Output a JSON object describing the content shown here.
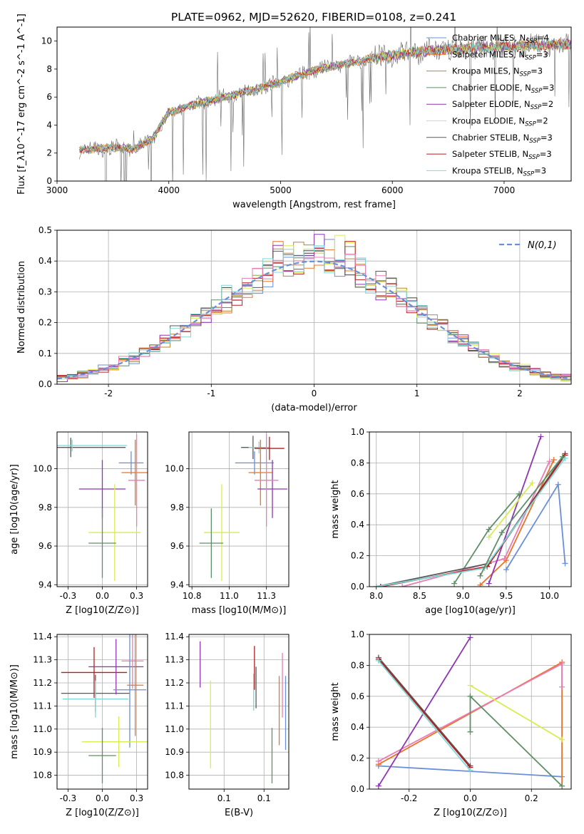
{
  "title": "PLATE=0962, MJD=52620, FIBERID=0108, z=0.241",
  "colors": {
    "c0": "#6a8fd8",
    "c1": "#e8742a",
    "c2": "#b8862e",
    "c3": "#5f8f69",
    "c4": "#8e35b3",
    "c5": "#d8ec4f",
    "c6": "#5a5a5a",
    "c7": "#b61e1e",
    "c8": "#7fd8d8",
    "pink": "#ea7cb3"
  },
  "chart_data": [
    {
      "id": "spectrum",
      "type": "line",
      "xlabel": "wavelength [Angstrom, rest frame]",
      "ylabel": "Flux [f_λ10^-17 erg cm^-2 s^-1 A^-1]",
      "xlim": [
        3000,
        7600
      ],
      "ylim": [
        0,
        11
      ],
      "xticks": [
        3000,
        4000,
        5000,
        6000,
        7000
      ],
      "yticks": [
        0,
        2,
        4,
        6,
        8,
        10
      ],
      "x_range": [
        3200,
        7600
      ],
      "continuum": [
        [
          3200,
          2.2
        ],
        [
          3500,
          2.4
        ],
        [
          3700,
          2.3
        ],
        [
          3850,
          3.0
        ],
        [
          4000,
          4.9
        ],
        [
          4200,
          5.4
        ],
        [
          4500,
          6.0
        ],
        [
          4800,
          6.6
        ],
        [
          5000,
          7.1
        ],
        [
          5300,
          7.9
        ],
        [
          5600,
          8.4
        ],
        [
          5900,
          8.9
        ],
        [
          6200,
          9.2
        ],
        [
          6500,
          9.4
        ],
        [
          7000,
          9.6
        ],
        [
          7600,
          9.8
        ]
      ],
      "legend": [
        {
          "label": "Chabrier MILES, N_SSP=4",
          "color": "#6a8fd8"
        },
        {
          "label": "Salpeter MILES, N_SSP=3",
          "color": "#e8742a"
        },
        {
          "label": "Kroupa MILES, N_SSP=3",
          "color": "#b8862e"
        },
        {
          "label": "Chabrier ELODIE, N_SSP=3",
          "color": "#5f8f69"
        },
        {
          "label": "Salpeter ELODIE, N_SSP=2",
          "color": "#8e35b3"
        },
        {
          "label": "Kroupa ELODIE, N_SSP=2",
          "color": "#d8ec4f"
        },
        {
          "label": "Chabrier STELIB, N_SSP=3",
          "color": "#5a5a5a"
        },
        {
          "label": "Salpeter STELIB, N_SSP=3",
          "color": "#b61e1e"
        },
        {
          "label": "Kroupa STELIB, N_SSP=3",
          "color": "#7fd8d8"
        }
      ]
    },
    {
      "id": "residuals",
      "type": "histogram",
      "xlabel": "(data-model)/error",
      "ylabel": "Normed distribution",
      "xlim": [
        -2.5,
        2.5
      ],
      "ylim": [
        0,
        0.5
      ],
      "xticks": [
        -2,
        -1,
        0,
        1,
        2
      ],
      "yticks": [
        0.0,
        0.1,
        0.2,
        0.3,
        0.4,
        0.5
      ],
      "bin_width": 0.1,
      "legend_label": "N(0,1)",
      "series_colors": [
        "#6a8fd8",
        "#e8742a",
        "#b8862e",
        "#5f8f69",
        "#8e35b3",
        "#d8ec4f",
        "#5a5a5a",
        "#b61e1e",
        "#7fd8d8",
        "#ea7cb3"
      ]
    },
    {
      "id": "age_Z",
      "type": "errorbar",
      "xlabel": "Z [log10(Z/Z⊙)]",
      "ylabel": "age  [log10(age/yr)]",
      "xlim": [
        -0.33,
        0.33
      ],
      "ylim": [
        9.39,
        10.19
      ],
      "xticks": [
        -0.25,
        0.0,
        0.25
      ],
      "yticks": [
        9.4,
        9.6,
        9.8,
        10.0
      ],
      "points": [
        {
          "x": -0.23,
          "y": 10.11,
          "xerr": 0.4,
          "yerr": 0.05,
          "color": "#5a5a5a"
        },
        {
          "x": -0.22,
          "y": 10.12,
          "xerr": 0.4,
          "yerr": 0.03,
          "color": "#7fd8d8"
        },
        {
          "x": 0.21,
          "y": 10.03,
          "xerr": 0.09,
          "yerr": 0.06,
          "color": "#6a8fd8"
        },
        {
          "x": 0.24,
          "y": 9.98,
          "xerr": 0.1,
          "yerr": 0.17,
          "color": "#e8742a"
        },
        {
          "x": 0.25,
          "y": 9.94,
          "xerr": 0.06,
          "yerr": 0.24,
          "color": "#ea7cb3"
        },
        {
          "x": 0.0,
          "y": 9.895,
          "xerr": 0.17,
          "yerr": 0.15,
          "color": "#8e35b3"
        },
        {
          "x": 0.09,
          "y": 9.67,
          "xerr": 0.19,
          "yerr": 0.25,
          "color": "#d8ec4f"
        },
        {
          "x": 0.0,
          "y": 9.615,
          "xerr": 0.1,
          "yerr": 0.18,
          "color": "#5f8f69"
        }
      ]
    },
    {
      "id": "age_mass",
      "type": "errorbar",
      "xlabel": "mass [log10(M/M⊙)]",
      "ylabel": "",
      "xlim": [
        10.73,
        11.4
      ],
      "ylim": [
        9.39,
        10.19
      ],
      "xticks": [
        10.75,
        11.0,
        11.25
      ],
      "yticks": [
        9.4,
        9.6,
        9.8,
        10.0
      ],
      "points": [
        {
          "x": 11.16,
          "y": 10.11,
          "xerr": 0.08,
          "yerr": 0.06,
          "color": "#5a5a5a"
        },
        {
          "x": 11.2,
          "y": 10.11,
          "xerr": 0.07,
          "yerr": 0.03,
          "color": "#7fd8d8"
        },
        {
          "x": 11.27,
          "y": 10.105,
          "xerr": 0.1,
          "yerr": 0.06,
          "color": "#b61e1e"
        },
        {
          "x": 11.17,
          "y": 10.03,
          "xerr": 0.13,
          "yerr": 0.06,
          "color": "#6a8fd8"
        },
        {
          "x": 11.21,
          "y": 9.98,
          "xerr": 0.08,
          "yerr": 0.17,
          "color": "#e8742a"
        },
        {
          "x": 11.29,
          "y": 9.895,
          "xerr": 0.1,
          "yerr": 0.15,
          "color": "#8e35b3"
        },
        {
          "x": 11.25,
          "y": 9.94,
          "xerr": 0.08,
          "yerr": 0.24,
          "color": "#ea7cb3"
        },
        {
          "x": 10.95,
          "y": 9.67,
          "xerr": 0.12,
          "yerr": 0.25,
          "color": "#d8ec4f"
        },
        {
          "x": 10.88,
          "y": 9.615,
          "xerr": 0.08,
          "yerr": 0.18,
          "color": "#5f8f69"
        }
      ]
    },
    {
      "id": "weight_age",
      "type": "line",
      "xlabel": "age  [log10(age/yr)]",
      "ylabel": "mass weight",
      "xlim": [
        7.92,
        10.25
      ],
      "ylim": [
        0,
        1.0
      ],
      "xticks": [
        8.0,
        8.5,
        9.0,
        9.5,
        10.0
      ],
      "yticks": [
        0.0,
        0.2,
        0.4,
        0.6,
        0.8,
        1.0
      ],
      "series": [
        {
          "color": "#6a8fd8",
          "points": [
            [
              9.5,
              0.11
            ],
            [
              10.1,
              0.66
            ],
            [
              10.18,
              0.15
            ]
          ]
        },
        {
          "color": "#e8742a",
          "points": [
            [
              9.2,
              0.01
            ],
            [
              9.5,
              0.17
            ],
            [
              10.05,
              0.82
            ]
          ]
        },
        {
          "color": "#ea7cb3",
          "points": [
            [
              8.3,
              0.0
            ],
            [
              9.48,
              0.18
            ],
            [
              10.0,
              0.81
            ]
          ]
        },
        {
          "color": "#8e35b3",
          "points": [
            [
              9.3,
              0.02
            ],
            [
              9.9,
              0.97
            ]
          ]
        },
        {
          "color": "#d8ec4f",
          "points": [
            [
              9.3,
              0.32
            ],
            [
              9.8,
              0.67
            ]
          ]
        },
        {
          "color": "#5f8f69",
          "points": [
            [
              8.9,
              0.02
            ],
            [
              9.3,
              0.37
            ],
            [
              9.65,
              0.6
            ]
          ]
        },
        {
          "color": "#5a5a5a",
          "points": [
            [
              8.0,
              0.0
            ],
            [
              9.3,
              0.15
            ],
            [
              10.18,
              0.86
            ]
          ]
        },
        {
          "color": "#b61e1e",
          "points": [
            [
              8.05,
              0.0
            ],
            [
              9.28,
              0.13
            ],
            [
              10.18,
              0.85
            ]
          ]
        },
        {
          "color": "#7fd8d8",
          "points": [
            [
              8.0,
              0.0
            ],
            [
              9.25,
              0.12
            ],
            [
              10.18,
              0.83
            ]
          ]
        },
        {
          "color": "#5f8f69",
          "points": [
            [
              9.2,
              0.07
            ],
            [
              9.45,
              0.35
            ],
            [
              10.15,
              0.84
            ]
          ]
        }
      ]
    },
    {
      "id": "mass_Z",
      "type": "errorbar",
      "xlabel": "Z [log10(Z/Z⊙)]",
      "ylabel": "mass [log10(M/M⊙)]",
      "xlim": [
        -0.33,
        0.33
      ],
      "ylim": [
        10.74,
        11.41
      ],
      "xticks": [
        -0.25,
        0.0,
        0.25
      ],
      "yticks": [
        10.8,
        10.9,
        11.0,
        11.1,
        11.2,
        11.3,
        11.4
      ],
      "points": [
        {
          "x": -0.06,
          "y": 11.245,
          "xerr": 0.24,
          "yerr": 0.11,
          "color": "#b61e1e"
        },
        {
          "x": -0.05,
          "y": 11.155,
          "xerr": 0.25,
          "yerr": 0.08,
          "color": "#5a5a5a"
        },
        {
          "x": -0.05,
          "y": 11.13,
          "xerr": 0.24,
          "yerr": 0.08,
          "color": "#7fd8d8"
        },
        {
          "x": 0.1,
          "y": 11.27,
          "xerr": 0.2,
          "yerr": 0.12,
          "color": "#8e35b3"
        },
        {
          "x": 0.22,
          "y": 11.295,
          "xerr": 0.08,
          "yerr": 0.12,
          "color": "#ea7cb3"
        },
        {
          "x": 0.24,
          "y": 11.19,
          "xerr": 0.06,
          "yerr": 0.22,
          "color": "#e8742a"
        },
        {
          "x": 0.2,
          "y": 11.17,
          "xerr": 0.12,
          "yerr": 0.25,
          "color": "#6a8fd8"
        },
        {
          "x": 0.12,
          "y": 10.945,
          "xerr": 0.27,
          "yerr": 0.11,
          "color": "#d8ec4f"
        },
        {
          "x": 0.0,
          "y": 10.885,
          "xerr": 0.1,
          "yerr": 0.12,
          "color": "#5f8f69"
        }
      ]
    },
    {
      "id": "mass_ebv",
      "type": "errorbar",
      "xlabel": "E(B-V)",
      "ylabel": "",
      "xlim": [
        0.006,
        0.131
      ],
      "ylim": [
        10.74,
        11.41
      ],
      "xticks": [
        0.05,
        0.1
      ],
      "yticks": [
        10.8,
        10.9,
        11.0,
        11.1,
        11.2,
        11.3,
        11.4
      ],
      "points": [
        {
          "x": 0.02,
          "y": 11.28,
          "xerr": 0,
          "yerr": 0.1,
          "color": "#8e35b3"
        },
        {
          "x": 0.033,
          "y": 11.02,
          "xerr": 0,
          "yerr": 0.19,
          "color": "#d8ec4f"
        },
        {
          "x": 0.087,
          "y": 11.16,
          "xerr": 0,
          "yerr": 0.08,
          "color": "#7fd8d8"
        },
        {
          "x": 0.088,
          "y": 11.265,
          "xerr": 0,
          "yerr": 0.095,
          "color": "#b61e1e"
        },
        {
          "x": 0.09,
          "y": 11.18,
          "xerr": 0,
          "yerr": 0.09,
          "color": "#5a5a5a"
        },
        {
          "x": 0.11,
          "y": 10.885,
          "xerr": 0,
          "yerr": 0.12,
          "color": "#5f8f69"
        },
        {
          "x": 0.119,
          "y": 11.08,
          "xerr": 0,
          "yerr": 0.15,
          "color": "#e8742a"
        },
        {
          "x": 0.123,
          "y": 11.19,
          "xerr": 0,
          "yerr": 0.14,
          "color": "#ea7cb3"
        },
        {
          "x": 0.127,
          "y": 11.07,
          "xerr": 0,
          "yerr": 0.16,
          "color": "#6a8fd8"
        }
      ]
    },
    {
      "id": "weight_Z",
      "type": "line",
      "xlabel": "Z [log10(Z/Z⊙)]",
      "ylabel": "mass weight",
      "xlim": [
        -0.33,
        0.33
      ],
      "ylim": [
        0,
        1.0
      ],
      "xticks": [
        -0.2,
        0.0,
        0.2
      ],
      "yticks": [
        0.0,
        0.2,
        0.4,
        0.6,
        0.8,
        1.0
      ],
      "series": [
        {
          "color": "#6a8fd8",
          "points": [
            [
              -0.3,
              0.15
            ],
            [
              0.3,
              0.08
            ]
          ]
        },
        {
          "color": "#e8742a",
          "points": [
            [
              -0.3,
              0.16
            ],
            [
              0.3,
              0.82
            ],
            [
              0.3,
              0.02
            ]
          ]
        },
        {
          "color": "#ea7cb3",
          "points": [
            [
              -0.3,
              0.18
            ],
            [
              0.3,
              0.81
            ],
            [
              0.3,
              0.66
            ]
          ]
        },
        {
          "color": "#8e35b3",
          "points": [
            [
              -0.3,
              0.02
            ],
            [
              0.0,
              0.98
            ]
          ]
        },
        {
          "color": "#d8ec4f",
          "points": [
            [
              0.0,
              0.67
            ],
            [
              0.3,
              0.32
            ]
          ]
        },
        {
          "color": "#5f8f69",
          "points": [
            [
              0.0,
              0.37
            ],
            [
              0.0,
              0.6
            ],
            [
              0.3,
              0.02
            ]
          ]
        },
        {
          "color": "#5a5a5a",
          "points": [
            [
              -0.3,
              0.85
            ],
            [
              0.0,
              0.15
            ]
          ]
        },
        {
          "color": "#b61e1e",
          "points": [
            [
              -0.3,
              0.84
            ],
            [
              0.0,
              0.14
            ]
          ]
        },
        {
          "color": "#7fd8d8",
          "points": [
            [
              -0.3,
              0.83
            ],
            [
              0.0,
              0.12
            ]
          ]
        }
      ]
    }
  ]
}
